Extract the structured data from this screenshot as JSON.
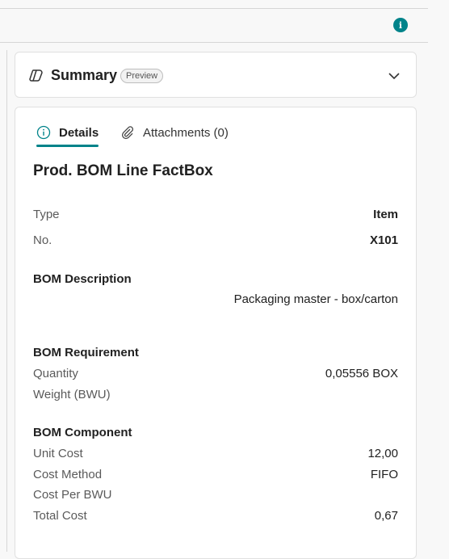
{
  "summary": {
    "title": "Summary",
    "badge": "Preview"
  },
  "tabs": [
    {
      "label": "Details"
    },
    {
      "label": "Attachments (0)"
    }
  ],
  "factbox": {
    "title": "Prod. BOM Line FactBox",
    "type": {
      "label": "Type",
      "value": "Item"
    },
    "no": {
      "label": "No.",
      "value": "X101"
    },
    "bom_description": {
      "heading": "BOM Description",
      "value": "Packaging master - box/carton"
    },
    "requirement": {
      "heading": "BOM Requirement",
      "quantity": {
        "label": "Quantity",
        "value": "0,05556 BOX"
      },
      "weight": {
        "label": "Weight (BWU)",
        "value": ""
      }
    },
    "component": {
      "heading": "BOM Component",
      "unit_cost": {
        "label": "Unit Cost",
        "value": "12,00"
      },
      "cost_method": {
        "label": "Cost Method",
        "value": "FIFO"
      },
      "cost_per_bwu": {
        "label": "Cost Per BWU",
        "value": ""
      },
      "total_cost": {
        "label": "Total Cost",
        "value": "0,67"
      }
    }
  },
  "colors": {
    "accent": "#00838a",
    "border": "#e0e0e0"
  },
  "icons": [
    "info-icon",
    "copilot-icon",
    "chevron-down-icon",
    "info-circle-icon",
    "paperclip-icon"
  ]
}
